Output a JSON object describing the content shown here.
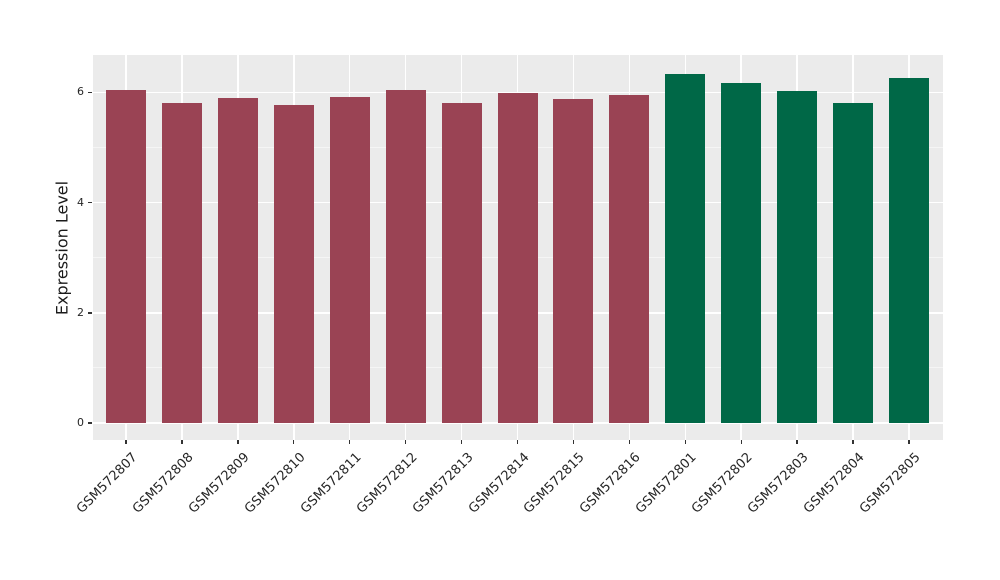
{
  "chart_data": {
    "type": "bar",
    "title": "",
    "xlabel": "",
    "ylabel": "Expression Level",
    "categories": [
      "GSM572807",
      "GSM572808",
      "GSM572809",
      "GSM572810",
      "GSM572811",
      "GSM572812",
      "GSM572813",
      "GSM572814",
      "GSM572815",
      "GSM572816",
      "GSM572801",
      "GSM572802",
      "GSM572803",
      "GSM572804",
      "GSM572805"
    ],
    "values": [
      6.04,
      5.8,
      5.9,
      5.78,
      5.91,
      6.04,
      5.8,
      5.99,
      5.89,
      5.96,
      6.33,
      6.17,
      6.03,
      5.8,
      6.27
    ],
    "bar_colors": [
      "#9A4354",
      "#9A4354",
      "#9A4354",
      "#9A4354",
      "#9A4354",
      "#9A4354",
      "#9A4354",
      "#9A4354",
      "#9A4354",
      "#9A4354",
      "#006847",
      "#006847",
      "#006847",
      "#006847",
      "#006847"
    ],
    "group_colors": {
      "left_group": "#9A4354",
      "right_group": "#006847"
    },
    "yticks": [
      0,
      2,
      4,
      6
    ],
    "minor_yticks": [
      1,
      3,
      5
    ],
    "ylim": [
      0,
      6.68
    ],
    "x_tick_rotation_deg": 45,
    "legend_position": "none",
    "grid": true,
    "panel_bg": "#EBEBEB",
    "gridline_major_color": "#FFFFFF",
    "gridline_minor_color": "#F5F5F5"
  }
}
